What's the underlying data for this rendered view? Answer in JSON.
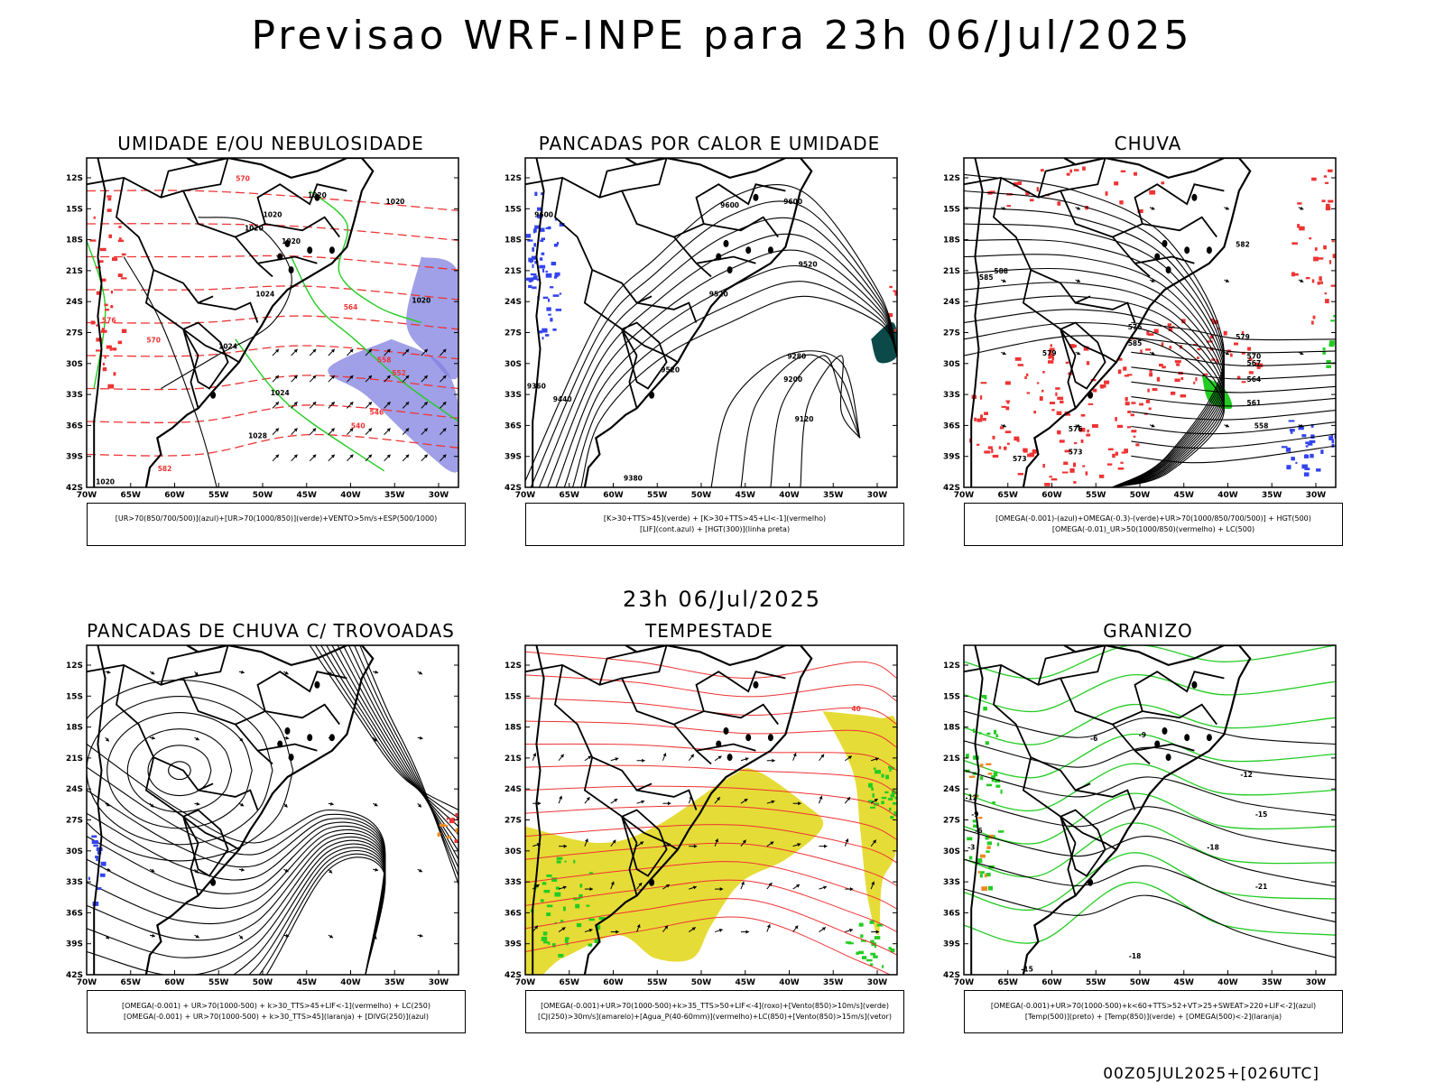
{
  "title": "Previsao WRF-INPE  para 23h 06/Jul/2025",
  "mid_title": "23h 06/Jul/2025",
  "footer": "00Z05JUL2025+[026UTC]",
  "axes": {
    "lat_labels": [
      "12S",
      "15S",
      "18S",
      "21S",
      "24S",
      "27S",
      "30S",
      "33S",
      "36S",
      "39S",
      "42S"
    ],
    "lon_labels": [
      "70W",
      "65W",
      "60W",
      "55W",
      "50W",
      "45W",
      "40W",
      "35W",
      "30W"
    ]
  },
  "panels": [
    {
      "id": "umidade",
      "title": "UMIDADE E/OU NEBULOSIDADE",
      "legend": [
        "[UR>70(850/700/500)](azul)+[UR>70(1000/850)](verde)+VENTO>5m/s+ESP(500/1000)"
      ],
      "labels": [
        "1020",
        "1020",
        "1020",
        "1020",
        "1024",
        "1020",
        "1024",
        "1020",
        "1024",
        "1028",
        "1020",
        "570",
        "570",
        "564",
        "558",
        "552",
        "546",
        "540",
        "582",
        "576"
      ]
    },
    {
      "id": "pancadas-calor",
      "title": "PANCADAS POR CALOR E UMIDADE",
      "legend": [
        "[K>30+TTS>45](verde) + [K>30+TTS>45+LI<-1](vermelho)",
        "[LIF](cont.azul) + [HGT(300)](linha preta)"
      ],
      "labels": [
        "9600",
        "9600",
        "9520",
        "9520",
        "9520",
        "9440",
        "9360",
        "9280",
        "9200",
        "9120",
        "9380",
        "9600"
      ]
    },
    {
      "id": "chuva",
      "title": "CHUVA",
      "legend": [
        "[OMEGA(-0.001)-(azul)+OMEGA(-0.3)-(verde)+UR>70(1000/850/700/500)] + HGT(500)",
        "[OMEGA(-0.01)_UR>50(1000/850)(vermelho) + LC(500)"
      ],
      "labels": [
        "582",
        "585",
        "588",
        "585",
        "579",
        "576",
        "573",
        "570",
        "567",
        "564",
        "561",
        "558",
        "579",
        "576",
        "573"
      ]
    },
    {
      "id": "pancadas-trovoadas",
      "title": "PANCADAS DE CHUVA C/ TROVOADAS",
      "legend": [
        "[OMEGA(-0.001) + UR>70(1000-500) + k>30_TTS>45+LIF<-1](vermelho) + LC(250)",
        "[OMEGA(-0.001) + UR>70(1000-500) + k>30_TTS>45](laranja) + [DIVG(250)](azul)"
      ],
      "labels": []
    },
    {
      "id": "tempestade",
      "title": "TEMPESTADE",
      "legend": [
        "[OMEGA(-0.001)+UR>70(1000-500)+k>35_TTS>50+LIF<-4](roxo)+[Vento(850)>10m/s](verde)",
        "[CJ(250)>30m/s](amarelo)+[Agua_P(40-60mm)](vermelho)+LC(850)+[Vento(850)>15m/s](vetor)"
      ],
      "labels": [
        "40"
      ]
    },
    {
      "id": "granizo",
      "title": "GRANIZO",
      "legend": [
        "[OMEGA(-0.001)+UR>70(1000-500)+k<60+TTS>52+VT>25+SWEAT>220+LIF<-2](azul)",
        "[Temp(500)](preto) + [Temp(850)](verde) + [OMEGA(500)<-2](laranja)"
      ],
      "labels": [
        "-6",
        "-9",
        "-12",
        "-15",
        "-18",
        "-21",
        "-15",
        "-18",
        "-3",
        "-6",
        "-9",
        "-12"
      ]
    }
  ],
  "colors": {
    "coast": "#000000",
    "contour": "#000000",
    "green": "#22cc22",
    "red": "#ee3333",
    "blue": "#3344ee",
    "purple": "#8080e0",
    "yellow": "#e6dc37",
    "orange": "#ee8822",
    "teal": "#0b4a48"
  }
}
